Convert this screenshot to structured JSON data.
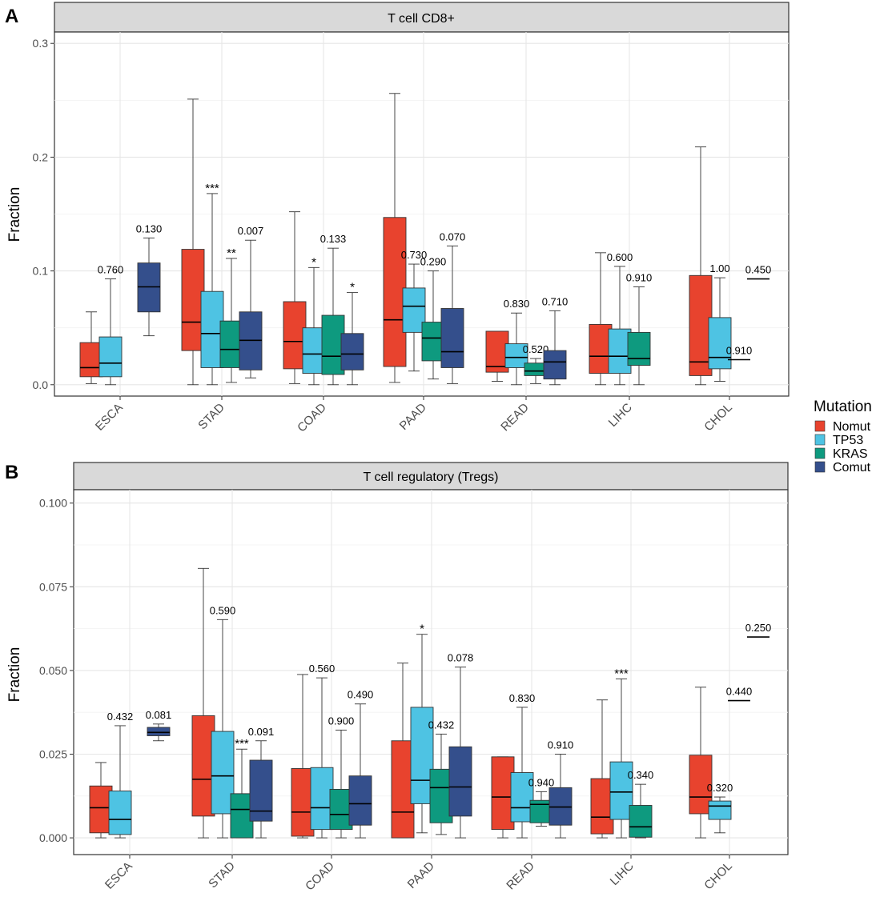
{
  "legend": {
    "title": "Mutation",
    "items": [
      {
        "label": "Nomut",
        "color": "#E8432E"
      },
      {
        "label": "TP53",
        "color": "#4EC3E3"
      },
      {
        "label": "KRAS",
        "color": "#0E9A7F"
      },
      {
        "label": "Comut",
        "color": "#344F8C"
      }
    ]
  },
  "chart_data": [
    {
      "type": "box",
      "panel_label": "A",
      "title": "T cell CD8+",
      "ylabel": "Fraction",
      "ylim": [
        -0.01,
        0.31
      ],
      "yticks": [
        0.0,
        0.1,
        0.2,
        0.3
      ],
      "ytick_labels": [
        "0.0",
        "0.1",
        "0.2",
        "0.3"
      ],
      "categories": [
        "ESCA",
        "STAD",
        "COAD",
        "PAAD",
        "READ",
        "LIHC",
        "CHOL"
      ],
      "series_names": [
        "Nomut",
        "TP53",
        "KRAS",
        "Comut"
      ],
      "groups": [
        {
          "category": "ESCA",
          "boxes": [
            {
              "series": "Nomut",
              "min": 0.001,
              "q1": 0.007,
              "median": 0.015,
              "q3": 0.037,
              "max": 0.064
            },
            {
              "series": "TP53",
              "min": 0.0,
              "q1": 0.007,
              "median": 0.019,
              "q3": 0.042,
              "max": 0.093,
              "label": "0.760"
            },
            {
              "series": "Comut",
              "min": 0.043,
              "q1": 0.064,
              "median": 0.086,
              "q3": 0.107,
              "max": 0.129,
              "label": "0.130"
            }
          ]
        },
        {
          "category": "STAD",
          "boxes": [
            {
              "series": "Nomut",
              "min": 0.0,
              "q1": 0.03,
              "median": 0.055,
              "q3": 0.119,
              "max": 0.251
            },
            {
              "series": "TP53",
              "min": 0.0,
              "q1": 0.015,
              "median": 0.045,
              "q3": 0.082,
              "max": 0.168,
              "label": "***"
            },
            {
              "series": "KRAS",
              "min": 0.002,
              "q1": 0.015,
              "median": 0.031,
              "q3": 0.056,
              "max": 0.111,
              "label": "**"
            },
            {
              "series": "Comut",
              "min": 0.006,
              "q1": 0.013,
              "median": 0.039,
              "q3": 0.064,
              "max": 0.127,
              "label": "0.007"
            }
          ]
        },
        {
          "category": "COAD",
          "boxes": [
            {
              "series": "Nomut",
              "min": 0.001,
              "q1": 0.014,
              "median": 0.038,
              "q3": 0.073,
              "max": 0.152
            },
            {
              "series": "TP53",
              "min": 0.0,
              "q1": 0.01,
              "median": 0.027,
              "q3": 0.05,
              "max": 0.103,
              "label": "*"
            },
            {
              "series": "KRAS",
              "min": 0.0,
              "q1": 0.009,
              "median": 0.025,
              "q3": 0.061,
              "max": 0.12,
              "label": "0.133"
            },
            {
              "series": "Comut",
              "min": 0.0,
              "q1": 0.013,
              "median": 0.027,
              "q3": 0.045,
              "max": 0.081,
              "label": "*"
            }
          ]
        },
        {
          "category": "PAAD",
          "boxes": [
            {
              "series": "Nomut",
              "min": 0.002,
              "q1": 0.016,
              "median": 0.057,
              "q3": 0.147,
              "max": 0.256
            },
            {
              "series": "TP53",
              "min": 0.012,
              "q1": 0.046,
              "median": 0.069,
              "q3": 0.085,
              "max": 0.106,
              "label": "0.730"
            },
            {
              "series": "KRAS",
              "min": 0.005,
              "q1": 0.021,
              "median": 0.041,
              "q3": 0.055,
              "max": 0.1,
              "label": "0.290"
            },
            {
              "series": "Comut",
              "min": 0.001,
              "q1": 0.015,
              "median": 0.029,
              "q3": 0.067,
              "max": 0.122,
              "label": "0.070"
            }
          ]
        },
        {
          "category": "READ",
          "boxes": [
            {
              "series": "Nomut",
              "min": 0.003,
              "q1": 0.011,
              "median": 0.016,
              "q3": 0.047,
              "max": 0.047
            },
            {
              "series": "TP53",
              "min": 0.0,
              "q1": 0.015,
              "median": 0.024,
              "q3": 0.036,
              "max": 0.063,
              "label": "0.830"
            },
            {
              "series": "KRAS",
              "min": 0.001,
              "q1": 0.008,
              "median": 0.012,
              "q3": 0.019,
              "max": 0.023,
              "label": "0.520"
            },
            {
              "series": "Comut",
              "min": 0.0,
              "q1": 0.005,
              "median": 0.02,
              "q3": 0.03,
              "max": 0.065,
              "label": "0.710"
            }
          ]
        },
        {
          "category": "LIHC",
          "boxes": [
            {
              "series": "Nomut",
              "min": 0.0,
              "q1": 0.01,
              "median": 0.025,
              "q3": 0.053,
              "max": 0.116
            },
            {
              "series": "TP53",
              "min": 0.0,
              "q1": 0.01,
              "median": 0.025,
              "q3": 0.049,
              "max": 0.104,
              "label": "0.600"
            },
            {
              "series": "KRAS",
              "min": 0.0,
              "q1": 0.017,
              "median": 0.023,
              "q3": 0.046,
              "max": 0.086,
              "label": "0.910"
            }
          ]
        },
        {
          "category": "CHOL",
          "boxes": [
            {
              "series": "Nomut",
              "min": 0.0,
              "q1": 0.008,
              "median": 0.02,
              "q3": 0.096,
              "max": 0.209
            },
            {
              "series": "TP53",
              "min": 0.003,
              "q1": 0.014,
              "median": 0.024,
              "q3": 0.059,
              "max": 0.094,
              "label": "1.00"
            },
            {
              "series": "KRAS",
              "min": 0.022,
              "q1": 0.022,
              "median": 0.022,
              "q3": 0.022,
              "max": 0.022,
              "label": "0.910"
            },
            {
              "series": "Comut",
              "min": 0.093,
              "q1": 0.093,
              "median": 0.093,
              "q3": 0.093,
              "max": 0.093,
              "label": "0.450"
            }
          ]
        }
      ]
    },
    {
      "type": "box",
      "panel_label": "B",
      "title": "T cell regulatory (Tregs)",
      "ylabel": "Fraction",
      "ylim": [
        -0.005,
        0.104
      ],
      "yticks": [
        0.0,
        0.025,
        0.05,
        0.075,
        0.1
      ],
      "ytick_labels": [
        "0.000",
        "0.025",
        "0.050",
        "0.075",
        "0.100"
      ],
      "categories": [
        "ESCA",
        "STAD",
        "COAD",
        "PAAD",
        "READ",
        "LIHC",
        "CHOL"
      ],
      "series_names": [
        "Nomut",
        "TP53",
        "KRAS",
        "Comut"
      ],
      "groups": [
        {
          "category": "ESCA",
          "boxes": [
            {
              "series": "Nomut",
              "min": 0.0,
              "q1": 0.0015,
              "median": 0.009,
              "q3": 0.0155,
              "max": 0.0225
            },
            {
              "series": "TP53",
              "min": 0.0,
              "q1": 0.001,
              "median": 0.0055,
              "q3": 0.014,
              "max": 0.0335,
              "label": "0.432"
            },
            {
              "series": "Comut",
              "min": 0.029,
              "q1": 0.0305,
              "median": 0.0315,
              "q3": 0.033,
              "max": 0.034,
              "label": "0.081"
            }
          ]
        },
        {
          "category": "STAD",
          "boxes": [
            {
              "series": "Nomut",
              "min": 0.0,
              "q1": 0.0065,
              "median": 0.0175,
              "q3": 0.0365,
              "max": 0.0805
            },
            {
              "series": "TP53",
              "min": 0.0,
              "q1": 0.0072,
              "median": 0.0185,
              "q3": 0.0318,
              "max": 0.0652,
              "label": "0.590"
            },
            {
              "series": "KRAS",
              "min": 0.0,
              "q1": 0.0,
              "median": 0.0085,
              "q3": 0.0132,
              "max": 0.0265,
              "label": "***"
            },
            {
              "series": "Comut",
              "min": 0.0,
              "q1": 0.005,
              "median": 0.008,
              "q3": 0.0232,
              "max": 0.029,
              "label": "0.091"
            }
          ]
        },
        {
          "category": "COAD",
          "boxes": [
            {
              "series": "Nomut",
              "min": 0.0,
              "q1": 0.0005,
              "median": 0.0077,
              "q3": 0.0207,
              "max": 0.0488
            },
            {
              "series": "TP53",
              "min": 0.0,
              "q1": 0.0025,
              "median": 0.009,
              "q3": 0.021,
              "max": 0.0478,
              "label": "0.560"
            },
            {
              "series": "KRAS",
              "min": 0.0,
              "q1": 0.0025,
              "median": 0.007,
              "q3": 0.0145,
              "max": 0.0322,
              "label": "0.900"
            },
            {
              "series": "Comut",
              "min": 0.0,
              "q1": 0.0038,
              "median": 0.0102,
              "q3": 0.0185,
              "max": 0.04,
              "label": "0.490"
            }
          ]
        },
        {
          "category": "PAAD",
          "boxes": [
            {
              "series": "Nomut",
              "min": 0.0,
              "q1": 0.0,
              "median": 0.0077,
              "q3": 0.029,
              "max": 0.0522
            },
            {
              "series": "TP53",
              "min": 0.0015,
              "q1": 0.0102,
              "median": 0.0172,
              "q3": 0.039,
              "max": 0.0608,
              "label": "*"
            },
            {
              "series": "KRAS",
              "min": 0.001,
              "q1": 0.0045,
              "median": 0.015,
              "q3": 0.0205,
              "max": 0.031,
              "label": "0.432"
            },
            {
              "series": "Comut",
              "min": 0.0,
              "q1": 0.0065,
              "median": 0.0152,
              "q3": 0.0272,
              "max": 0.051,
              "label": "0.078"
            }
          ]
        },
        {
          "category": "READ",
          "boxes": [
            {
              "series": "Nomut",
              "min": 0.0,
              "q1": 0.0025,
              "median": 0.0122,
              "q3": 0.0242,
              "max": 0.0242
            },
            {
              "series": "TP53",
              "min": 0.0,
              "q1": 0.0048,
              "median": 0.009,
              "q3": 0.0195,
              "max": 0.039,
              "label": "0.830"
            },
            {
              "series": "KRAS",
              "min": 0.0035,
              "q1": 0.0045,
              "median": 0.01,
              "q3": 0.0112,
              "max": 0.0138,
              "label": "0.940"
            },
            {
              "series": "Comut",
              "min": 0.0,
              "q1": 0.0038,
              "median": 0.0092,
              "q3": 0.015,
              "max": 0.025,
              "label": "0.910"
            }
          ]
        },
        {
          "category": "LIHC",
          "boxes": [
            {
              "series": "Nomut",
              "min": 0.0,
              "q1": 0.0012,
              "median": 0.0062,
              "q3": 0.0177,
              "max": 0.0412
            },
            {
              "series": "TP53",
              "min": 0.0,
              "q1": 0.0055,
              "median": 0.0137,
              "q3": 0.0227,
              "max": 0.0475,
              "label": "***"
            },
            {
              "series": "KRAS",
              "min": 0.0,
              "q1": 0.0002,
              "median": 0.0033,
              "q3": 0.0097,
              "max": 0.016,
              "label": "0.340"
            }
          ]
        },
        {
          "category": "CHOL",
          "boxes": [
            {
              "series": "Nomut",
              "min": 0.0,
              "q1": 0.0072,
              "median": 0.0122,
              "q3": 0.0247,
              "max": 0.045
            },
            {
              "series": "TP53",
              "min": 0.0015,
              "q1": 0.0055,
              "median": 0.0095,
              "q3": 0.011,
              "max": 0.0122,
              "label": "0.320"
            },
            {
              "series": "KRAS",
              "min": 0.041,
              "q1": 0.041,
              "median": 0.041,
              "q3": 0.041,
              "max": 0.041,
              "label": "0.440"
            },
            {
              "series": "Comut",
              "min": 0.06,
              "q1": 0.06,
              "median": 0.06,
              "q3": 0.06,
              "max": 0.06,
              "label": "0.250"
            }
          ]
        }
      ]
    }
  ]
}
